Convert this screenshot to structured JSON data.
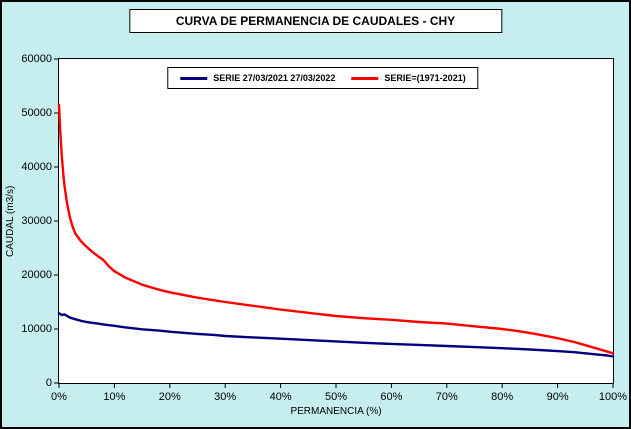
{
  "title": "CURVA DE PERMANENCIA DE CAUDALES - CHY",
  "colors": {
    "background": "#C7EEEF",
    "plot_background": "#FFFFFF",
    "border": "#000000",
    "series_blue": "#000080",
    "series_red": "#FF0000"
  },
  "legend": {
    "items": [
      {
        "label": "SERIE 27/03/2021 27/03/2022",
        "color": "#000080"
      },
      {
        "label": "SERIE=(1971-2021)",
        "color": "#FF0000"
      }
    ]
  },
  "chart_data": {
    "type": "line",
    "title": "CURVA DE PERMANENCIA DE CAUDALES - CHY",
    "xlabel": "PERMANENCIA (%)",
    "ylabel": "CAUDAL (m3/s)",
    "xlim": [
      0,
      100
    ],
    "ylim": [
      0,
      60000
    ],
    "grid": false,
    "legend_position": "top-center",
    "x_ticks": [
      "0%",
      "10%",
      "20%",
      "30%",
      "40%",
      "50%",
      "60%",
      "70%",
      "80%",
      "90%",
      "100%"
    ],
    "x_tick_values": [
      0,
      10,
      20,
      30,
      40,
      50,
      60,
      70,
      80,
      90,
      100
    ],
    "y_ticks": [
      "0",
      "10000",
      "20000",
      "30000",
      "40000",
      "50000",
      "60000"
    ],
    "y_tick_values": [
      0,
      10000,
      20000,
      30000,
      40000,
      50000,
      60000
    ],
    "series": [
      {
        "name": "SERIE 27/03/2021 27/03/2022",
        "color": "#000080",
        "x": [
          0,
          0.5,
          1,
          1.5,
          2,
          3,
          4,
          5,
          6,
          7,
          8,
          9,
          10,
          12,
          15,
          18,
          20,
          23,
          25,
          28,
          30,
          35,
          40,
          45,
          50,
          55,
          60,
          65,
          70,
          75,
          80,
          85,
          90,
          93,
          95,
          97,
          99,
          100
        ],
        "y": [
          12900,
          12600,
          12700,
          12400,
          12100,
          11800,
          11500,
          11300,
          11150,
          11000,
          10850,
          10700,
          10600,
          10300,
          9950,
          9700,
          9500,
          9250,
          9100,
          8900,
          8700,
          8450,
          8200,
          7950,
          7700,
          7450,
          7250,
          7050,
          6850,
          6650,
          6450,
          6200,
          5900,
          5700,
          5500,
          5300,
          5100,
          4900
        ]
      },
      {
        "name": "SERIE=(1971-2021)",
        "color": "#FF0000",
        "x": [
          0,
          0.2,
          0.5,
          0.8,
          1,
          1.5,
          2,
          2.5,
          3,
          4,
          5,
          6,
          7,
          8,
          9,
          10,
          12,
          15,
          18,
          20,
          25,
          30,
          35,
          40,
          45,
          50,
          55,
          60,
          65,
          70,
          75,
          80,
          83,
          86,
          90,
          93,
          95,
          97,
          99,
          100
        ],
        "y": [
          51500,
          47000,
          42000,
          38500,
          36500,
          33000,
          30500,
          28800,
          27600,
          26200,
          25200,
          24300,
          23500,
          22800,
          21600,
          20700,
          19500,
          18200,
          17300,
          16800,
          15800,
          15000,
          14300,
          13600,
          13000,
          12400,
          12000,
          11700,
          11300,
          11000,
          10500,
          10000,
          9600,
          9100,
          8300,
          7600,
          7000,
          6400,
          5800,
          5500
        ]
      }
    ]
  }
}
